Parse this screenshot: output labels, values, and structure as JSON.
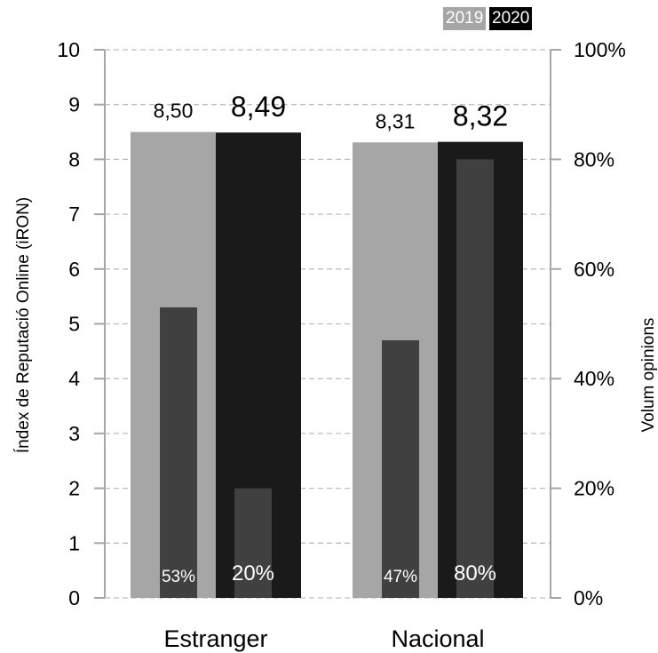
{
  "chart_data": {
    "type": "bar",
    "categories": [
      "Estranger",
      "Nacional"
    ],
    "ylabel": "Índex de Reputació Online (iRON)",
    "y2label": "Volum opinions",
    "ylim": [
      0,
      10
    ],
    "y2lim": [
      0,
      100
    ],
    "yticks": [
      "0",
      "1",
      "2",
      "3",
      "4",
      "5",
      "6",
      "7",
      "8",
      "9",
      "10"
    ],
    "y2ticks": [
      "0%",
      "20%",
      "40%",
      "60%",
      "80%",
      "100%"
    ],
    "grid": true,
    "legend_position": "top-right",
    "series": [
      {
        "name": "2019",
        "axis": "left",
        "color": "#a6a6a6",
        "values": [
          8.5,
          8.31
        ],
        "labels": [
          "8,50",
          "8,31"
        ]
      },
      {
        "name": "2020",
        "axis": "left",
        "color": "#1a1a1a",
        "values": [
          8.49,
          8.32
        ],
        "labels": [
          "8,49",
          "8,32"
        ]
      },
      {
        "name": "2019",
        "axis": "right",
        "color": "#404040",
        "values": [
          53,
          47
        ],
        "labels": [
          "53%",
          "47%"
        ]
      },
      {
        "name": "2020",
        "axis": "right",
        "color": "#404040",
        "values": [
          20,
          80
        ],
        "labels": [
          "20%",
          "80%"
        ]
      }
    ]
  },
  "legend": {
    "y2019": "2019",
    "y2020": "2020"
  }
}
